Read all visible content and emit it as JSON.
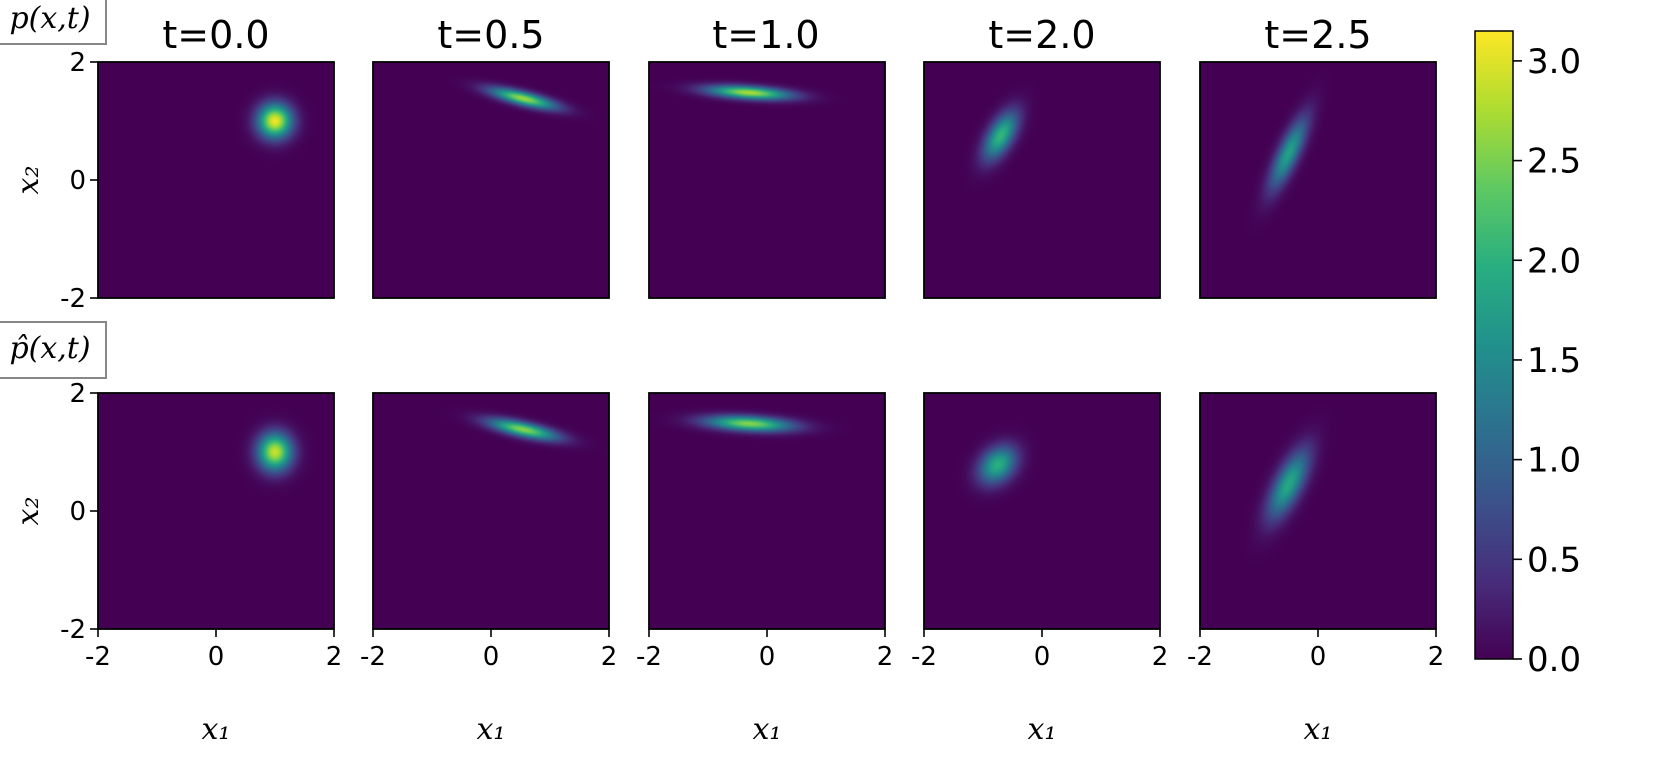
{
  "chart_data": {
    "type": "heatmap",
    "colormap": "viridis",
    "columns": [
      "t=0.0",
      "t=0.5",
      "t=1.0",
      "t=2.0",
      "t=2.5"
    ],
    "row_labels": [
      "p(x,t)",
      "p̂(x,t)"
    ],
    "xlabel": "x₁",
    "ylabel": "x₂",
    "xlim": [
      -2,
      2
    ],
    "ylim": [
      -2,
      2
    ],
    "xticks": [
      "-2",
      "0",
      "2"
    ],
    "yticks": [
      "-2",
      "0",
      "2"
    ],
    "colorbar": {
      "min": 0.0,
      "max": 3.15,
      "ticks": [
        "0.0",
        "0.5",
        "1.0",
        "1.5",
        "2.0",
        "2.5",
        "3.0"
      ]
    },
    "rows": [
      {
        "name": "p(x,t)",
        "blobs": [
          {
            "cx": 1.0,
            "cy": 1.0,
            "sx": 0.2,
            "sy": 0.2,
            "rho": 0.0,
            "peak": 3.1
          },
          {
            "cx": 0.55,
            "cy": 1.38,
            "sx": 0.38,
            "sy": 0.12,
            "rho": -0.75,
            "peak": 2.7
          },
          {
            "cx": -0.3,
            "cy": 1.48,
            "sx": 0.48,
            "sy": 0.08,
            "rho": -0.4,
            "peak": 2.8
          },
          {
            "cx": -0.7,
            "cy": 0.75,
            "sx": 0.2,
            "sy": 0.28,
            "rho": 0.6,
            "peak": 2.1
          },
          {
            "cx": -0.5,
            "cy": 0.45,
            "sx": 0.22,
            "sy": 0.42,
            "rho": 0.8,
            "peak": 1.8
          }
        ]
      },
      {
        "name": "p̂(x,t)",
        "blobs": [
          {
            "cx": 1.0,
            "cy": 1.0,
            "sx": 0.2,
            "sy": 0.22,
            "rho": 0.0,
            "peak": 2.9
          },
          {
            "cx": 0.55,
            "cy": 1.38,
            "sx": 0.4,
            "sy": 0.12,
            "rho": -0.7,
            "peak": 2.6
          },
          {
            "cx": -0.3,
            "cy": 1.48,
            "sx": 0.5,
            "sy": 0.09,
            "rho": -0.3,
            "peak": 2.6
          },
          {
            "cx": -0.75,
            "cy": 0.78,
            "sx": 0.22,
            "sy": 0.22,
            "rho": 0.3,
            "peak": 2.0
          },
          {
            "cx": -0.5,
            "cy": 0.45,
            "sx": 0.24,
            "sy": 0.4,
            "rho": 0.7,
            "peak": 1.9
          }
        ]
      }
    ]
  }
}
